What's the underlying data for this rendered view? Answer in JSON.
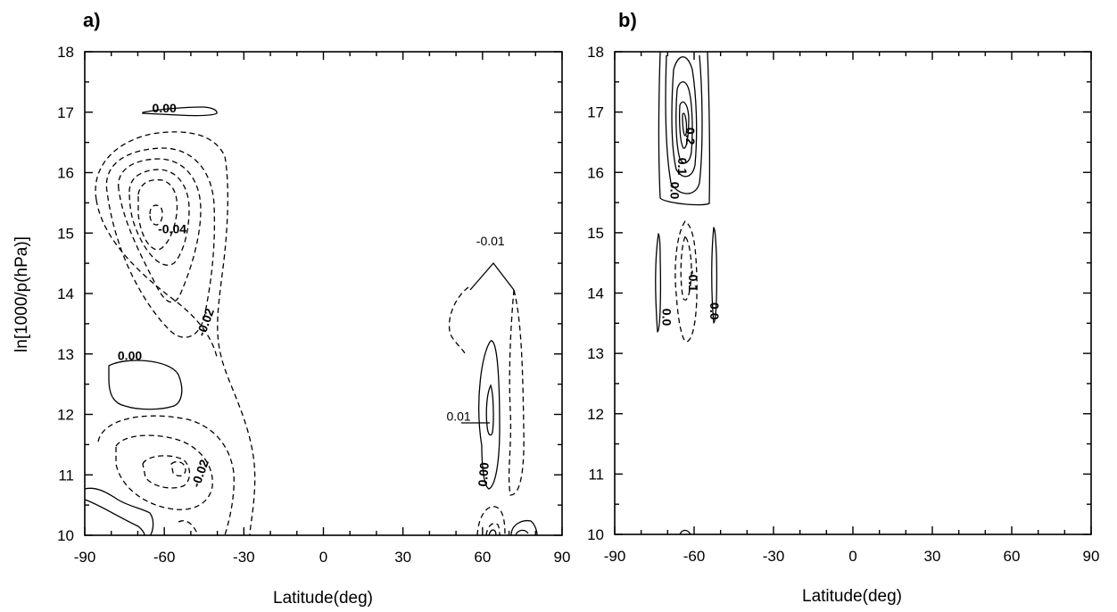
{
  "chart_data": [
    {
      "type": "contour",
      "panel_label": "a)",
      "xlabel": "Latitude(deg)",
      "ylabel": "ln[1000/p(hPa)]",
      "xlim": [
        -90,
        90
      ],
      "ylim": [
        10,
        18
      ],
      "xticks": [
        "-90",
        "-60",
        "-30",
        "0",
        "30",
        "60",
        "90"
      ],
      "yticks": [
        "10",
        "11",
        "12",
        "13",
        "14",
        "15",
        "16",
        "17",
        "18"
      ],
      "contour_labels": [
        {
          "text": "0.00",
          "x": -60,
          "y": 17.0
        },
        {
          "text": "-0.04",
          "x": -57,
          "y": 15.0
        },
        {
          "text": "-0.02",
          "x": -43,
          "y": 13.5
        },
        {
          "text": "0.00",
          "x": -73,
          "y": 12.9
        },
        {
          "text": "-0.02",
          "x": -45,
          "y": 11.0
        },
        {
          "text": "0.00",
          "x": 62,
          "y": 11.0
        }
      ],
      "callouts": [
        {
          "text": "-0.01",
          "x": 63,
          "y": 14.8
        },
        {
          "text": "0.01",
          "x": 51,
          "y": 11.9
        }
      ],
      "extrema": [
        {
          "kind": "negative",
          "x": -62,
          "y": 15.3,
          "value_range": "< -0.04"
        },
        {
          "kind": "negative",
          "x": -53,
          "y": 11.2,
          "value_range": "< -0.02"
        },
        {
          "kind": "positive",
          "x": 63,
          "y": 11.8,
          "value_range": "> 0.01"
        },
        {
          "kind": "negative",
          "x": 55,
          "y": 13.6,
          "value_range": "-0.01"
        },
        {
          "kind": "negative",
          "x": 73,
          "y": 12.5,
          "value_range": "-0.01"
        }
      ]
    },
    {
      "type": "contour",
      "panel_label": "b)",
      "xlabel": "Latitude(deg)",
      "ylabel": "",
      "xlim": [
        -90,
        90
      ],
      "ylim": [
        10,
        18
      ],
      "xticks": [
        "-90",
        "-60",
        "-30",
        "0",
        "30",
        "60",
        "90"
      ],
      "yticks": [
        "10",
        "11",
        "12",
        "13",
        "14",
        "15",
        "16",
        "17",
        "18"
      ],
      "contour_labels": [
        {
          "text": "0.2",
          "x": -63,
          "y": 16.6
        },
        {
          "text": "0.1",
          "x": -66,
          "y": 16.1
        },
        {
          "text": "0.0",
          "x": -69,
          "y": 15.7
        },
        {
          "text": "-0.1",
          "x": -62,
          "y": 14.2
        },
        {
          "text": "0.0",
          "x": -72,
          "y": 13.6
        },
        {
          "text": "0.0",
          "x": -54,
          "y": 13.7
        }
      ],
      "extrema": [
        {
          "kind": "positive",
          "x": -63,
          "y": 16.8,
          "value_range": "> 0.2"
        },
        {
          "kind": "negative",
          "x": -63,
          "y": 14.3,
          "value_range": "< -0.1"
        }
      ]
    }
  ]
}
